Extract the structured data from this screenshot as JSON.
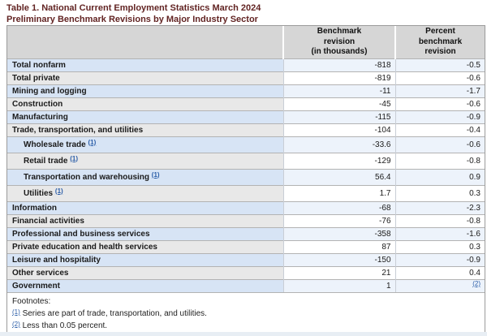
{
  "colors": {
    "title_text": "#622423",
    "header_bg": "#d6d6d6",
    "row_blue_label_bg": "#d7e4f5",
    "row_blue_value_bg": "#edf3fb",
    "row_gray_label_bg": "#e8e8e8",
    "row_gray_value_bg": "#ffffff",
    "border_outer": "#9b9b9b",
    "border_row": "#b3b3b3",
    "border_col": "#c9ced6",
    "link": "#2a5da8",
    "cell_text": "#1a1a1a",
    "page_bottom_strip": "#e8eef4"
  },
  "title": {
    "line1": "Table 1. National Current Employment Statistics March 2024",
    "line2": "Preliminary Benchmark Revisions by Major Industry Sector"
  },
  "table": {
    "header": {
      "sector": "",
      "benchmark": "Benchmark\nrevision\n(in thousands)",
      "percent": "Percent\nbenchmark\nrevision"
    },
    "rows": [
      {
        "label": "Total nonfarm",
        "indent": false,
        "ref": "",
        "benchmark": "-818",
        "percent": "-0.5",
        "percent_ref": ""
      },
      {
        "label": "Total private",
        "indent": false,
        "ref": "",
        "benchmark": "-819",
        "percent": "-0.6",
        "percent_ref": ""
      },
      {
        "label": "Mining and logging",
        "indent": false,
        "ref": "",
        "benchmark": "-11",
        "percent": "-1.7",
        "percent_ref": ""
      },
      {
        "label": "Construction",
        "indent": false,
        "ref": "",
        "benchmark": "-45",
        "percent": "-0.6",
        "percent_ref": ""
      },
      {
        "label": "Manufacturing",
        "indent": false,
        "ref": "",
        "benchmark": "-115",
        "percent": "-0.9",
        "percent_ref": ""
      },
      {
        "label": "Trade, transportation, and utilities",
        "indent": false,
        "ref": "",
        "benchmark": "-104",
        "percent": "-0.4",
        "percent_ref": ""
      },
      {
        "label": "Wholesale trade",
        "indent": true,
        "ref": "(1)",
        "benchmark": "-33.6",
        "percent": "-0.6",
        "percent_ref": ""
      },
      {
        "label": "Retail trade",
        "indent": true,
        "ref": "(1)",
        "benchmark": "-129",
        "percent": "-0.8",
        "percent_ref": ""
      },
      {
        "label": "Transportation and warehousing",
        "indent": true,
        "ref": "(1)",
        "benchmark": "56.4",
        "percent": "0.9",
        "percent_ref": ""
      },
      {
        "label": "Utilities",
        "indent": true,
        "ref": "(1)",
        "benchmark": "1.7",
        "percent": "0.3",
        "percent_ref": ""
      },
      {
        "label": "Information",
        "indent": false,
        "ref": "",
        "benchmark": "-68",
        "percent": "-2.3",
        "percent_ref": ""
      },
      {
        "label": "Financial activities",
        "indent": false,
        "ref": "",
        "benchmark": "-76",
        "percent": "-0.8",
        "percent_ref": ""
      },
      {
        "label": "Professional and business services",
        "indent": false,
        "ref": "",
        "benchmark": "-358",
        "percent": "-1.6",
        "percent_ref": ""
      },
      {
        "label": "Private education and health services",
        "indent": false,
        "ref": "",
        "benchmark": "87",
        "percent": "0.3",
        "percent_ref": ""
      },
      {
        "label": "Leisure and hospitality",
        "indent": false,
        "ref": "",
        "benchmark": "-150",
        "percent": "-0.9",
        "percent_ref": ""
      },
      {
        "label": "Other services",
        "indent": false,
        "ref": "",
        "benchmark": "21",
        "percent": "0.4",
        "percent_ref": ""
      },
      {
        "label": "Government",
        "indent": false,
        "ref": "",
        "benchmark": "1",
        "percent": "",
        "percent_ref": "(2)"
      }
    ]
  },
  "footnotes": {
    "heading": "Footnotes:",
    "items": [
      {
        "ref": "(1)",
        "text": "Series are part of trade, transportation, and utilities."
      },
      {
        "ref": "(2)",
        "text": "Less than 0.05 percent."
      }
    ]
  }
}
